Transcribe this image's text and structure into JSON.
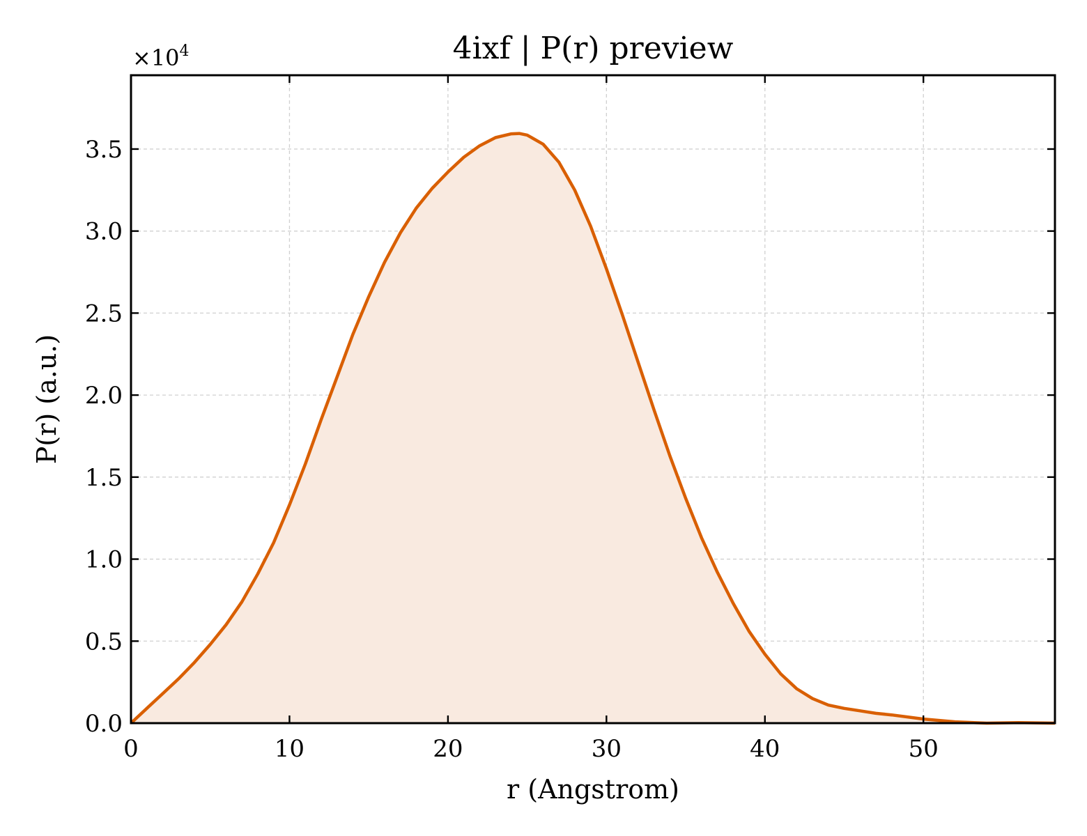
{
  "chart_data": {
    "type": "area",
    "title": "4ixf | P(r) preview",
    "xlabel": "r (Angstrom)",
    "ylabel": "P(r) (a.u.)",
    "y_scale_label": "×10",
    "y_scale_exponent": "4",
    "xlim": [
      0,
      58.3
    ],
    "ylim": [
      0,
      3.95
    ],
    "xticks": [
      0,
      10,
      20,
      30,
      40,
      50
    ],
    "xtick_labels": [
      "0",
      "10",
      "20",
      "30",
      "40",
      "50"
    ],
    "yticks": [
      0,
      0.5,
      1.0,
      1.5,
      2.0,
      2.5,
      3.0,
      3.5
    ],
    "ytick_labels": [
      "0.0",
      "0.5",
      "1.0",
      "1.5",
      "2.0",
      "2.5",
      "3.0",
      "3.5"
    ],
    "grid": true,
    "line_color": "#d95f02",
    "fill_color": "#f9eae0",
    "series": [
      {
        "x": [
          0,
          1,
          2,
          3,
          4,
          5,
          6,
          7,
          8,
          9,
          10,
          11,
          12,
          13,
          14,
          15,
          16,
          17,
          18,
          19,
          20,
          21,
          22,
          23,
          24,
          24.5,
          25,
          26,
          27,
          28,
          29,
          30,
          31,
          32,
          33,
          34,
          35,
          36,
          37,
          38,
          39,
          40,
          41,
          42,
          43,
          44,
          45,
          46,
          47,
          48,
          50,
          52,
          54,
          56,
          58.3
        ],
        "y": [
          0.0,
          0.09,
          0.18,
          0.27,
          0.37,
          0.48,
          0.6,
          0.74,
          0.91,
          1.1,
          1.33,
          1.58,
          1.85,
          2.11,
          2.37,
          2.6,
          2.81,
          2.99,
          3.14,
          3.26,
          3.36,
          3.45,
          3.52,
          3.57,
          3.593,
          3.595,
          3.585,
          3.53,
          3.42,
          3.25,
          3.03,
          2.77,
          2.49,
          2.2,
          1.91,
          1.63,
          1.37,
          1.13,
          0.92,
          0.73,
          0.56,
          0.42,
          0.3,
          0.21,
          0.15,
          0.11,
          0.09,
          0.075,
          0.06,
          0.05,
          0.025,
          0.008,
          0.0,
          0.003,
          0.0
        ]
      }
    ]
  }
}
